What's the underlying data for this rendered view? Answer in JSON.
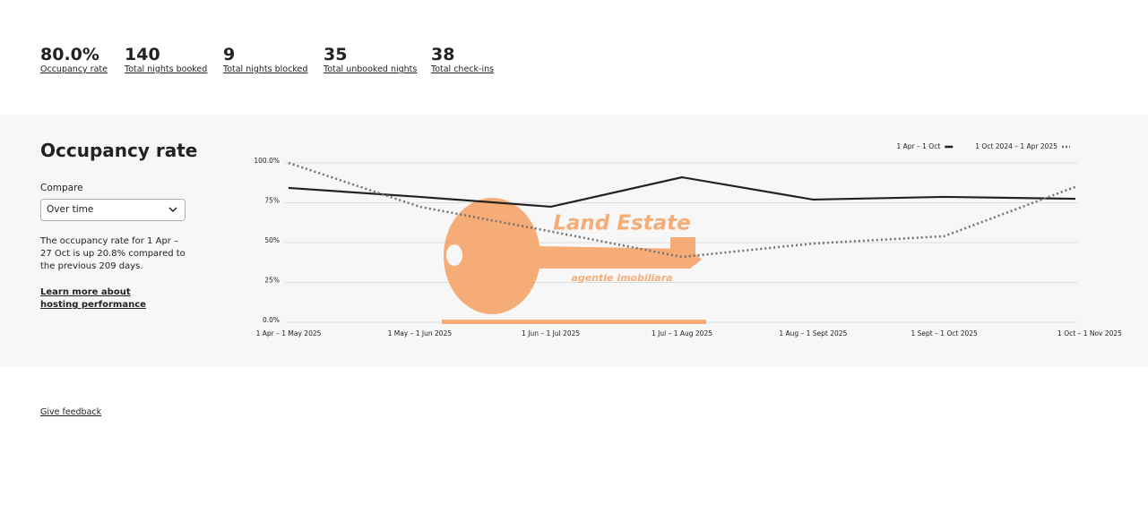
{
  "stats": [
    {
      "value": "80.0%",
      "label": "Occupancy rate"
    },
    {
      "value": "140",
      "label": "Total nights booked"
    },
    {
      "value": "9",
      "label": "Total nights blocked"
    },
    {
      "value": "35",
      "label": "Total unbooked nights"
    },
    {
      "value": "38",
      "label": "Total check-ins"
    }
  ],
  "panel": {
    "title": "Occupancy rate",
    "compare_label": "Compare",
    "compare_value": "Over time",
    "description": "The occupancy rate for 1 Apr – 27 Oct is up 20.8% compared to the previous 209 days.",
    "link": "Learn more about hosting performance"
  },
  "chart_data": {
    "type": "line",
    "categories": [
      "1 Apr – 1 May 2025",
      "1 May – 1 Jun 2025",
      "1 Jun – 1 Jul 2025",
      "1 Jul – 1 Aug 2025",
      "1 Aug – 1 Sept 2025",
      "1 Sept – 1 Oct 2025",
      "1 Oct – 1 Nov 2025"
    ],
    "series": [
      {
        "name": "1 Apr – 1 Oct",
        "color": "#222222",
        "style": "solid",
        "values": [
          84.3,
          78.7,
          72.5,
          91,
          77,
          78.7,
          77.5
        ]
      },
      {
        "name": "1 Oct 2024 – 1 Apr 2025",
        "color": "#717171",
        "style": "dotted",
        "values": [
          100,
          72.5,
          57,
          41,
          49.4,
          54,
          85
        ]
      }
    ],
    "ylim": [
      0,
      100
    ],
    "yticks": [
      {
        "value": 0,
        "label": "0.0%"
      },
      {
        "value": 25,
        "label": "25%"
      },
      {
        "value": 50,
        "label": "50%"
      },
      {
        "value": 75,
        "label": "75%"
      },
      {
        "value": 100,
        "label": "100.0%"
      }
    ],
    "grid": true,
    "legend": "top-right"
  },
  "watermark": {
    "title": "Land Estate",
    "subtitle": "agentie imobiliara"
  },
  "footer": {
    "link": "Give feedback"
  }
}
